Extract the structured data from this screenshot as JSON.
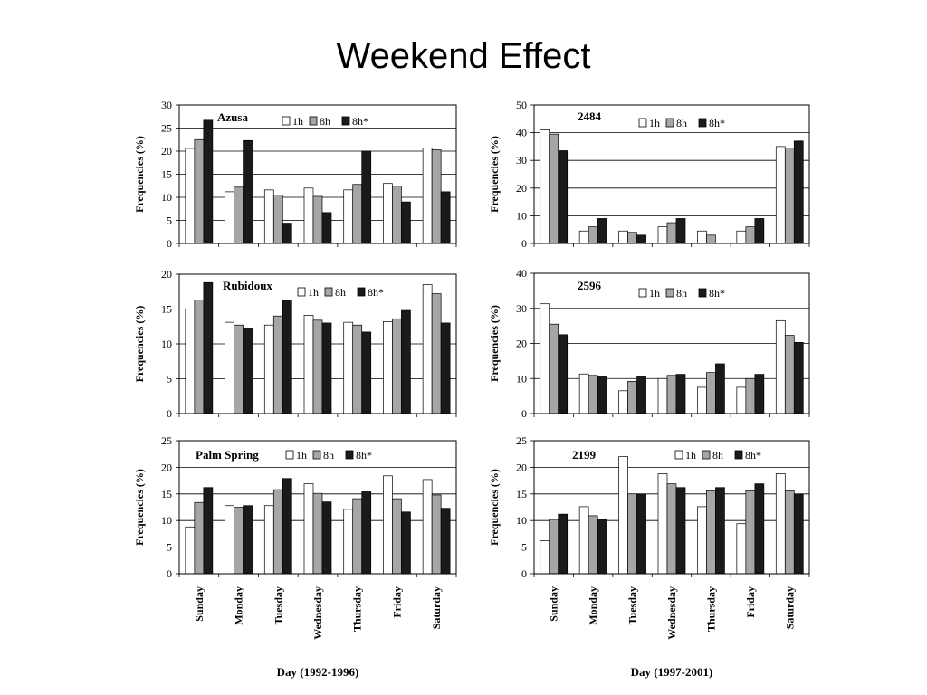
{
  "slide": {
    "title": "Weekend Effect"
  },
  "colors": {
    "s1": "#ffffff",
    "s2": "#a6a6a6",
    "s3": "#1a1a1a",
    "stroke": "#000000",
    "grid": "#000000"
  },
  "legend_labels": [
    "1h",
    "8h",
    "8h*"
  ],
  "chart_data": [
    {
      "type": "bar",
      "title": "Azusa",
      "ylabel": "Frequencies (%)",
      "xlabel": "",
      "ylim": [
        0,
        30
      ],
      "yticks": [
        0,
        5,
        10,
        15,
        20,
        25,
        30
      ],
      "grid": true,
      "categories": [
        "Sunday",
        "Monday",
        "Tuesday",
        "Wednesday",
        "Thursday",
        "Friday",
        "Saturday"
      ],
      "series": [
        {
          "name": "1h",
          "values": [
            20.6,
            11.2,
            11.6,
            12.0,
            11.6,
            13.0,
            20.7
          ]
        },
        {
          "name": "8h",
          "values": [
            22.5,
            12.2,
            10.5,
            10.2,
            12.8,
            12.4,
            20.3
          ]
        },
        {
          "name": "8h*",
          "values": [
            26.7,
            22.3,
            4.4,
            6.7,
            20.0,
            9.0,
            11.2
          ]
        }
      ]
    },
    {
      "type": "bar",
      "title": "2484",
      "ylabel": "Frequencies (%)",
      "xlabel": "",
      "ylim": [
        0,
        50
      ],
      "yticks": [
        0,
        10,
        20,
        30,
        40,
        50
      ],
      "grid": true,
      "categories": [
        "Sunday",
        "Monday",
        "Tuesday",
        "Wednesday",
        "Thursday",
        "Friday",
        "Saturday"
      ],
      "series": [
        {
          "name": "1h",
          "values": [
            41,
            4.5,
            4.5,
            6,
            4.5,
            4.5,
            35
          ]
        },
        {
          "name": "8h",
          "values": [
            39.5,
            6,
            4,
            7.5,
            3,
            6,
            34.5
          ]
        },
        {
          "name": "8h*",
          "values": [
            33.5,
            9,
            3,
            9,
            0,
            9,
            37
          ]
        }
      ]
    },
    {
      "type": "bar",
      "title": "Rubidoux",
      "ylabel": "Frequencies (%)",
      "xlabel": "",
      "ylim": [
        0,
        20
      ],
      "yticks": [
        0,
        5,
        10,
        15,
        20
      ],
      "grid": true,
      "categories": [
        "Sunday",
        "Monday",
        "Tuesday",
        "Wednesday",
        "Thursday",
        "Friday",
        "Saturday"
      ],
      "series": [
        {
          "name": "1h",
          "values": [
            15.0,
            13.1,
            12.7,
            14.1,
            13.1,
            13.2,
            18.5
          ]
        },
        {
          "name": "8h",
          "values": [
            16.3,
            12.7,
            14.0,
            13.4,
            12.7,
            13.6,
            17.2
          ]
        },
        {
          "name": "8h*",
          "values": [
            18.8,
            12.2,
            16.3,
            13.0,
            11.7,
            14.8,
            13.0
          ]
        }
      ]
    },
    {
      "type": "bar",
      "title": "2596",
      "ylabel": "Frequencies (%)",
      "xlabel": "",
      "ylim": [
        0,
        40
      ],
      "yticks": [
        0,
        10,
        20,
        30,
        40
      ],
      "grid": true,
      "categories": [
        "Sunday",
        "Monday",
        "Tuesday",
        "Wednesday",
        "Thursday",
        "Friday",
        "Saturday"
      ],
      "series": [
        {
          "name": "1h",
          "values": [
            31.3,
            11.3,
            6.5,
            10.0,
            7.5,
            7.5,
            26.5
          ]
        },
        {
          "name": "8h",
          "values": [
            25.5,
            10.9,
            9.2,
            10.9,
            11.7,
            10.0,
            22.3
          ]
        },
        {
          "name": "8h*",
          "values": [
            22.5,
            10.7,
            10.7,
            11.2,
            14.2,
            11.2,
            20.3
          ]
        }
      ]
    },
    {
      "type": "bar",
      "title": "Palm Spring",
      "ylabel": "Frequencies (%)",
      "xlabel": "Day (1992-1996)",
      "ylim": [
        0,
        25
      ],
      "yticks": [
        0,
        5,
        10,
        15,
        20,
        25
      ],
      "grid": true,
      "categories": [
        "Sunday",
        "Monday",
        "Tuesday",
        "Wednesday",
        "Thursday",
        "Friday",
        "Saturday"
      ],
      "series": [
        {
          "name": "1h",
          "values": [
            8.8,
            12.8,
            12.8,
            16.9,
            12.1,
            18.4,
            17.7
          ]
        },
        {
          "name": "8h",
          "values": [
            13.4,
            12.5,
            15.8,
            15.1,
            14.1,
            14.1,
            14.8
          ]
        },
        {
          "name": "8h*",
          "values": [
            16.2,
            12.8,
            17.9,
            13.5,
            15.4,
            11.6,
            12.3
          ]
        }
      ]
    },
    {
      "type": "bar",
      "title": "2199",
      "ylabel": "Frequencies (%)",
      "xlabel": "Day (1997-2001)",
      "ylim": [
        0,
        25
      ],
      "yticks": [
        0,
        5,
        10,
        15,
        20,
        25
      ],
      "grid": true,
      "categories": [
        "Sunday",
        "Monday",
        "Tuesday",
        "Wednesday",
        "Thursday",
        "Friday",
        "Saturday"
      ],
      "series": [
        {
          "name": "1h",
          "values": [
            6.2,
            12.6,
            22.0,
            18.8,
            12.6,
            9.4,
            18.8
          ]
        },
        {
          "name": "8h",
          "values": [
            10.2,
            10.9,
            15.0,
            16.9,
            15.6,
            15.6,
            15.6
          ]
        },
        {
          "name": "8h*",
          "values": [
            11.2,
            10.2,
            15.0,
            16.2,
            16.2,
            16.9,
            15.0
          ]
        }
      ]
    }
  ]
}
